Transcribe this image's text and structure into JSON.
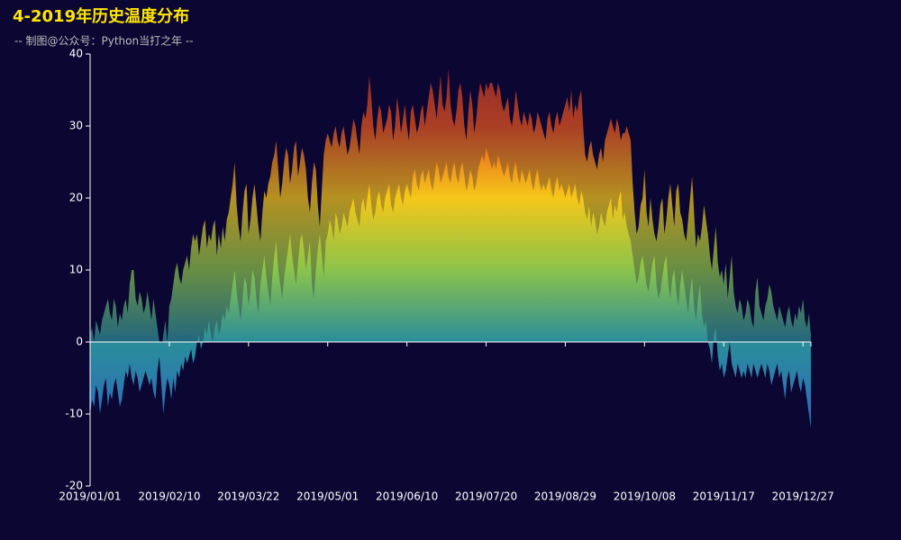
{
  "chart_data": {
    "type": "area",
    "title": "4-2019年历史温度分布",
    "subtitle": "-- 制图@公众号：Python当打之年 --",
    "colors": [
      "#1e5fd0",
      "#2c6fb8",
      "#2a8d9a",
      "#8bc34a",
      "#f5c71a",
      "#e8541f",
      "#c0302a"
    ],
    "ylim": [
      -20,
      40
    ],
    "yticks": [
      -20,
      -10,
      0,
      10,
      20,
      30,
      40
    ],
    "categories": [
      "2019/01/01",
      null,
      null,
      null,
      null,
      null,
      null,
      null,
      null,
      null,
      null,
      null,
      null,
      null,
      null,
      null,
      null,
      null,
      null,
      null,
      null,
      null,
      null,
      null,
      null,
      null,
      null,
      null,
      null,
      null,
      null,
      null,
      null,
      null,
      null,
      null,
      null,
      null,
      null,
      null,
      "2019/02/10",
      null,
      null,
      null,
      null,
      null,
      null,
      null,
      null,
      null,
      null,
      null,
      null,
      null,
      null,
      null,
      null,
      null,
      null,
      null,
      null,
      null,
      null,
      null,
      null,
      null,
      null,
      null,
      null,
      null,
      null,
      null,
      null,
      null,
      null,
      null,
      null,
      null,
      null,
      null,
      "2019/03/22",
      null,
      null,
      null,
      null,
      null,
      null,
      null,
      null,
      null,
      null,
      null,
      null,
      null,
      null,
      null,
      null,
      null,
      null,
      null,
      null,
      null,
      null,
      null,
      null,
      null,
      null,
      null,
      null,
      null,
      null,
      null,
      null,
      null,
      null,
      null,
      null,
      null,
      null,
      null,
      "2019/05/01",
      null,
      null,
      null,
      null,
      null,
      null,
      null,
      null,
      null,
      null,
      null,
      null,
      null,
      null,
      null,
      null,
      null,
      null,
      null,
      null,
      null,
      null,
      null,
      null,
      null,
      null,
      null,
      null,
      null,
      null,
      null,
      null,
      null,
      null,
      null,
      null,
      null,
      null,
      null,
      "2019/06/10",
      null,
      null,
      null,
      null,
      null,
      null,
      null,
      null,
      null,
      null,
      null,
      null,
      null,
      null,
      null,
      null,
      null,
      null,
      null,
      null,
      null,
      null,
      null,
      null,
      null,
      null,
      null,
      null,
      null,
      null,
      null,
      null,
      null,
      null,
      null,
      null,
      null,
      null,
      null,
      "2019/07/20",
      null,
      null,
      null,
      null,
      null,
      null,
      null,
      null,
      null,
      null,
      null,
      null,
      null,
      null,
      null,
      null,
      null,
      null,
      null,
      null,
      null,
      null,
      null,
      null,
      null,
      null,
      null,
      null,
      null,
      null,
      null,
      null,
      null,
      null,
      null,
      null,
      null,
      null,
      null,
      "2019/08/29",
      null,
      null,
      null,
      null,
      null,
      null,
      null,
      null,
      null,
      null,
      null,
      null,
      null,
      null,
      null,
      null,
      null,
      null,
      null,
      null,
      null,
      null,
      null,
      null,
      null,
      null,
      null,
      null,
      null,
      null,
      null,
      null,
      null,
      null,
      null,
      null,
      null,
      null,
      null,
      "2019/10/08",
      null,
      null,
      null,
      null,
      null,
      null,
      null,
      null,
      null,
      null,
      null,
      null,
      null,
      null,
      null,
      null,
      null,
      null,
      null,
      null,
      null,
      null,
      null,
      null,
      null,
      null,
      null,
      null,
      null,
      null,
      null,
      null,
      null,
      null,
      null,
      null,
      null,
      null,
      null,
      "2019/11/17",
      null,
      null,
      null,
      null,
      null,
      null,
      null,
      null,
      null,
      null,
      null,
      null,
      null,
      null,
      null,
      null,
      null,
      null,
      null,
      null,
      null,
      null,
      null,
      null,
      null,
      null,
      null,
      null,
      null,
      null,
      null,
      null,
      null,
      null,
      null,
      null,
      null,
      null,
      null,
      "2019/12/27",
      null,
      null,
      null,
      null
    ],
    "series": [
      {
        "opacity": 0.72,
        "values": [
          1,
          2,
          0,
          3,
          2,
          1,
          3,
          4,
          5,
          6,
          4,
          3,
          6,
          5,
          2,
          4,
          3,
          5,
          6,
          4,
          8,
          10,
          10,
          6,
          5,
          7,
          6,
          4,
          5,
          7,
          5,
          3,
          6,
          4,
          2,
          0,
          -1,
          1,
          3,
          0,
          5,
          6,
          8,
          10,
          11,
          9,
          8,
          10,
          11,
          12,
          10,
          13,
          15,
          14,
          15,
          12,
          14,
          16,
          17,
          13,
          15,
          14,
          16,
          17,
          12,
          15,
          13,
          16,
          14,
          17,
          18,
          20,
          22,
          25,
          19,
          16,
          14,
          18,
          21,
          22,
          15,
          17,
          20,
          22,
          19,
          16,
          14,
          18,
          21,
          20,
          22,
          23,
          25,
          26,
          28,
          24,
          20,
          22,
          25,
          27,
          26,
          22,
          24,
          27,
          28,
          23,
          25,
          27,
          26,
          24,
          20,
          18,
          22,
          25,
          24,
          19,
          16,
          21,
          26,
          28,
          29,
          28,
          27,
          29,
          30,
          28,
          27,
          29,
          30,
          28,
          26,
          27,
          29,
          31,
          30,
          28,
          26,
          30,
          32,
          31,
          33,
          37,
          34,
          30,
          28,
          31,
          33,
          32,
          29,
          30,
          31,
          33,
          32,
          28,
          30,
          34,
          32,
          29,
          31,
          33,
          30,
          28,
          32,
          33,
          31,
          29,
          30,
          32,
          33,
          30,
          32,
          34,
          36,
          35,
          33,
          31,
          34,
          37,
          33,
          32,
          34,
          38,
          33,
          31,
          30,
          32,
          35,
          36,
          34,
          30,
          28,
          32,
          35,
          33,
          29,
          31,
          34,
          36,
          35,
          34,
          36,
          35,
          36,
          36,
          35,
          34,
          36,
          35,
          33,
          32,
          33,
          34,
          31,
          30,
          32,
          35,
          33,
          31,
          30,
          32,
          31,
          30,
          32,
          31,
          29,
          30,
          32,
          31,
          30,
          29,
          28,
          31,
          32,
          30,
          29,
          31,
          32,
          30,
          31,
          32,
          33,
          34,
          32,
          35,
          31,
          33,
          32,
          34,
          35,
          30,
          26,
          25,
          27,
          28,
          26,
          25,
          24,
          26,
          27,
          25,
          28,
          29,
          30,
          31,
          30,
          29,
          31,
          30,
          28,
          29,
          29,
          30,
          29,
          28,
          22,
          18,
          15,
          16,
          19,
          20,
          24,
          18,
          16,
          20,
          17,
          15,
          14,
          16,
          19,
          20,
          15,
          17,
          20,
          22,
          19,
          16,
          21,
          22,
          18,
          17,
          15,
          14,
          17,
          20,
          23,
          18,
          13,
          15,
          14,
          16,
          19,
          17,
          15,
          12,
          10,
          13,
          16,
          11,
          9,
          10,
          8,
          11,
          6,
          9,
          12,
          7,
          5,
          4,
          6,
          5,
          3,
          4,
          6,
          5,
          3,
          2,
          7,
          9,
          5,
          4,
          3,
          5,
          6,
          8,
          7,
          5,
          4,
          3,
          5,
          4,
          3,
          2,
          4,
          5,
          3,
          2,
          4,
          3,
          5,
          4,
          6,
          3,
          2,
          4,
          1
        ]
      },
      {
        "opacity": 1,
        "values": [
          -10,
          -8,
          -9,
          -6,
          -7,
          -10,
          -8,
          -6,
          -5,
          -9,
          -7,
          -8,
          -6,
          -5,
          -7,
          -9,
          -8,
          -6,
          -4,
          -5,
          -3,
          -5,
          -6,
          -4,
          -5,
          -7,
          -6,
          -5,
          -4,
          -5,
          -6,
          -5,
          -7,
          -8,
          -4,
          -2,
          -6,
          -10,
          -7,
          -5,
          -6,
          -8,
          -5,
          -7,
          -4,
          -5,
          -3,
          -4,
          -2,
          -3,
          -2,
          -1,
          -3,
          -2,
          0,
          1,
          -1,
          0,
          2,
          1,
          3,
          1,
          0,
          2,
          3,
          1,
          2,
          4,
          3,
          5,
          4,
          6,
          8,
          10,
          7,
          5,
          3,
          6,
          9,
          8,
          5,
          7,
          10,
          9,
          6,
          4,
          8,
          10,
          12,
          9,
          7,
          5,
          9,
          12,
          14,
          10,
          8,
          6,
          9,
          11,
          13,
          15,
          12,
          10,
          8,
          11,
          14,
          15,
          13,
          10,
          12,
          14,
          8,
          6,
          10,
          13,
          15,
          12,
          9,
          14,
          15,
          17,
          16,
          14,
          18,
          17,
          15,
          16,
          18,
          17,
          16,
          18,
          19,
          20,
          18,
          17,
          16,
          19,
          20,
          18,
          20,
          22,
          19,
          17,
          18,
          20,
          21,
          19,
          18,
          20,
          21,
          22,
          19,
          18,
          20,
          21,
          22,
          20,
          19,
          21,
          22,
          21,
          20,
          23,
          24,
          22,
          21,
          23,
          24,
          22,
          23,
          24,
          22,
          21,
          23,
          25,
          24,
          22,
          23,
          24,
          25,
          23,
          22,
          24,
          25,
          23,
          22,
          24,
          25,
          23,
          21,
          22,
          24,
          23,
          21,
          22,
          24,
          25,
          26,
          25,
          27,
          26,
          25,
          24,
          25,
          24,
          26,
          25,
          24,
          23,
          24,
          25,
          23,
          22,
          24,
          25,
          23,
          22,
          24,
          23,
          22,
          23,
          24,
          22,
          21,
          23,
          24,
          22,
          21,
          22,
          21,
          22,
          23,
          21,
          20,
          22,
          23,
          21,
          22,
          21,
          20,
          21,
          22,
          20,
          21,
          22,
          20,
          19,
          21,
          20,
          18,
          17,
          19,
          16,
          18,
          17,
          15,
          16,
          18,
          17,
          16,
          18,
          19,
          20,
          17,
          19,
          18,
          20,
          21,
          17,
          18,
          16,
          15,
          14,
          12,
          10,
          8,
          9,
          11,
          12,
          10,
          8,
          7,
          9,
          11,
          12,
          8,
          6,
          7,
          9,
          11,
          12,
          8,
          6,
          9,
          10,
          7,
          5,
          8,
          10,
          8,
          6,
          4,
          7,
          9,
          5,
          3,
          6,
          8,
          4,
          2,
          3,
          0,
          -1,
          -3,
          1,
          2,
          -2,
          -4,
          -3,
          -5,
          -4,
          -2,
          0,
          -3,
          -4,
          -5,
          -3,
          -4,
          -5,
          -4,
          -5,
          -3,
          -4,
          -5,
          -3,
          -4,
          -5,
          -4,
          -3,
          -4,
          -5,
          -3,
          -4,
          -6,
          -5,
          -4,
          -3,
          -5,
          -4,
          -6,
          -8,
          -5,
          -4,
          -7,
          -6,
          -5,
          -4,
          -6,
          -7,
          -5,
          -6,
          -8,
          -10,
          -12
        ]
      }
    ]
  }
}
